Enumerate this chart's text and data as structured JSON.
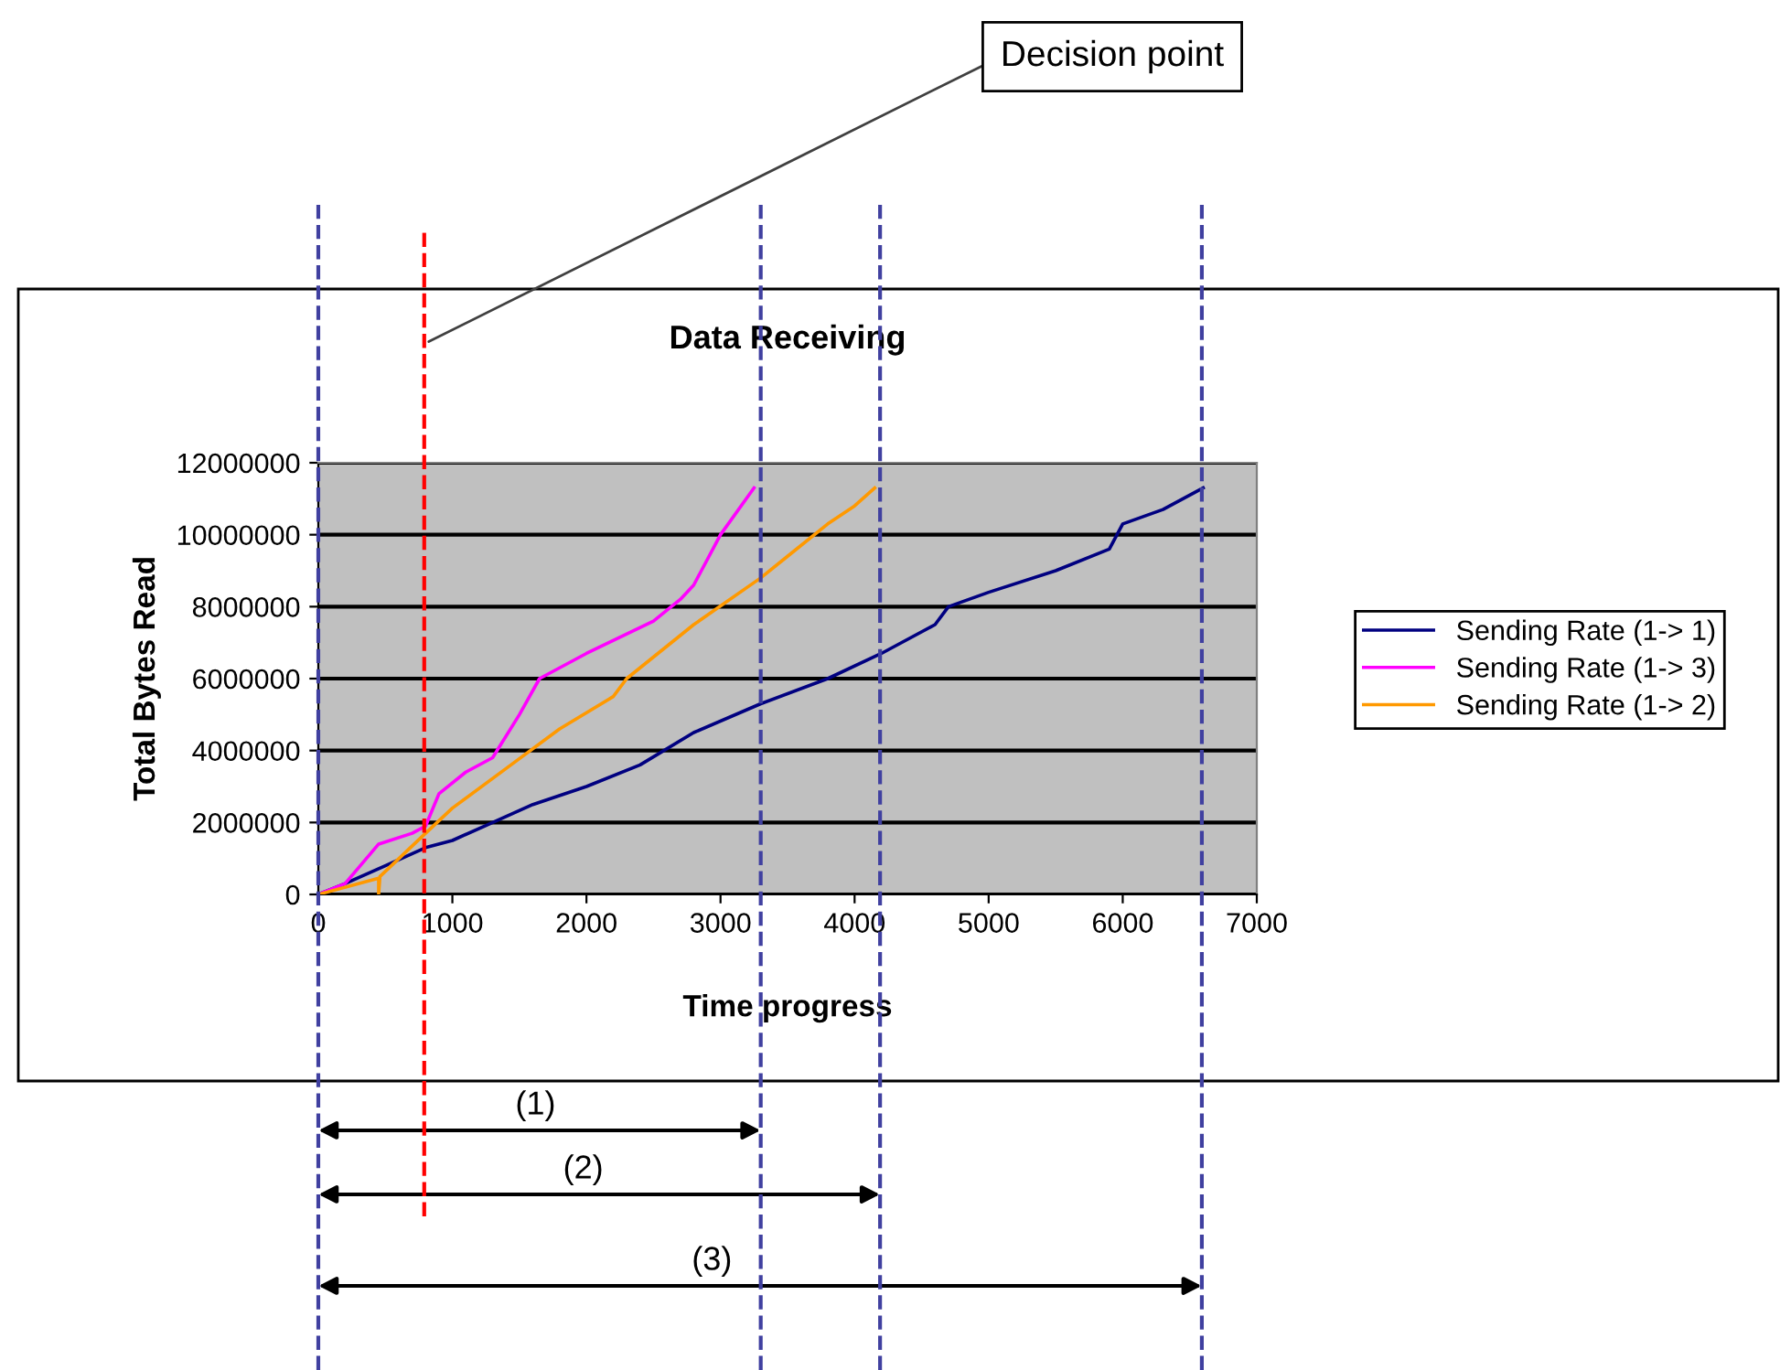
{
  "chart_data": {
    "type": "line",
    "title": "Data Receiving",
    "xlabel": "Time progress",
    "ylabel": "Total Bytes Read",
    "xlim": [
      0,
      7000
    ],
    "xticks": [
      0,
      1000,
      2000,
      3000,
      4000,
      5000,
      6000,
      7000
    ],
    "ylim": [
      0,
      12000000
    ],
    "yticks": [
      0,
      2000000,
      4000000,
      6000000,
      8000000,
      10000000,
      12000000
    ],
    "grid": "y",
    "legend": "right",
    "series": [
      {
        "name": "Sending Rate (1-> 1)",
        "color": "#000080",
        "x": [
          0,
          200,
          500,
          800,
          1000,
          1300,
          1600,
          2000,
          2400,
          2800,
          3300,
          3800,
          4200,
          4600,
          4700,
          5000,
          5500,
          5900,
          6000,
          6300,
          6600
        ],
        "values": [
          0,
          300000,
          800000,
          1300000,
          1500000,
          2000000,
          2500000,
          3000000,
          3600000,
          4500000,
          5300000,
          6000000,
          6700000,
          7500000,
          8000000,
          8400000,
          9000000,
          9600000,
          10300000,
          10700000,
          11300000
        ]
      },
      {
        "name": "Sending Rate (1-> 3)",
        "color": "#ff00ff",
        "x": [
          0,
          200,
          450,
          700,
          800,
          900,
          1100,
          1300,
          1500,
          1650,
          2000,
          2500,
          2700,
          2800,
          3000,
          3250
        ],
        "values": [
          0,
          300000,
          1400000,
          1700000,
          1900000,
          2800000,
          3400000,
          3800000,
          5000000,
          6000000,
          6700000,
          7600000,
          8200000,
          8600000,
          10000000,
          11300000
        ]
      },
      {
        "name": "Sending Rate (1-> 2)",
        "color": "#ff9900",
        "x": [
          0,
          450,
          450,
          460,
          800,
          1000,
          1400,
          1800,
          2200,
          2300,
          2800,
          3300,
          3500,
          3800,
          4000,
          4150
        ],
        "values": [
          0,
          450000,
          0,
          500000,
          1700000,
          2400000,
          3500000,
          4600000,
          5500000,
          6000000,
          7500000,
          8800000,
          9400000,
          10300000,
          10800000,
          11300000
        ]
      }
    ],
    "ref_lines": [
      {
        "axis": "x",
        "value": 0,
        "color": "#4040a0",
        "line_style": "dashed"
      },
      {
        "axis": "x",
        "value": 790,
        "label": "Decision point",
        "color": "#ff0000",
        "line_style": "dashed"
      },
      {
        "axis": "x",
        "value": 3300,
        "color": "#4040a0",
        "line_style": "dashed"
      },
      {
        "axis": "x",
        "value": 4190,
        "color": "#4040a0",
        "line_style": "dashed"
      },
      {
        "axis": "x",
        "value": 6590,
        "color": "#4040a0",
        "line_style": "dashed"
      }
    ],
    "annotations": [
      "(1)",
      "(2)",
      "(3)"
    ]
  }
}
